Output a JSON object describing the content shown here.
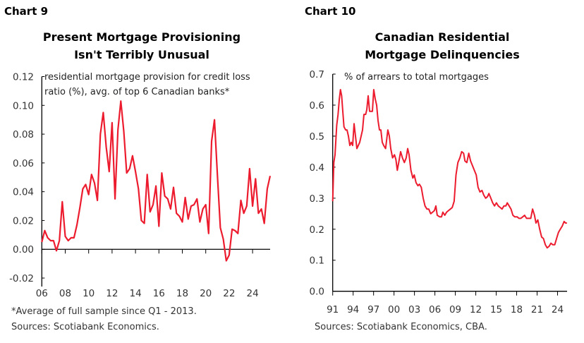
{
  "chart_data": [
    {
      "type": "line",
      "number_label": "Chart 9",
      "title": [
        "Present Mortgage Provisioning",
        "Isn't Terribly Unusual"
      ],
      "annotation": [
        "residential mortgage provision for credit loss",
        "ratio (%), avg. of top 6 Canadian banks*"
      ],
      "footnotes": [
        "*Average of full sample since Q1 - 2013.",
        "Sources: Scotiabank Economics."
      ],
      "ylim": [
        -0.02,
        0.12
      ],
      "yticks": [
        "-0.02",
        "0.00",
        "0.02",
        "0.04",
        "0.06",
        "0.08",
        "0.10",
        "0.12"
      ],
      "xlim": [
        2006,
        2025.5
      ],
      "xticks": [
        "06",
        "08",
        "10",
        "12",
        "14",
        "16",
        "18",
        "20",
        "22",
        "24"
      ],
      "grid": false,
      "color": "#ec1c2e",
      "x": [
        2006.0,
        2006.25,
        2006.5,
        2006.75,
        2007.0,
        2007.25,
        2007.5,
        2007.75,
        2008.0,
        2008.25,
        2008.5,
        2008.75,
        2009.0,
        2009.25,
        2009.5,
        2009.75,
        2010.0,
        2010.25,
        2010.5,
        2010.75,
        2011.0,
        2011.25,
        2011.5,
        2011.75,
        2012.0,
        2012.25,
        2012.5,
        2012.75,
        2013.0,
        2013.25,
        2013.5,
        2013.75,
        2014.0,
        2014.25,
        2014.5,
        2014.75,
        2015.0,
        2015.25,
        2015.5,
        2015.75,
        2016.0,
        2016.25,
        2016.5,
        2016.75,
        2017.0,
        2017.25,
        2017.5,
        2017.75,
        2018.0,
        2018.25,
        2018.5,
        2018.75,
        2019.0,
        2019.25,
        2019.5,
        2019.75,
        2020.0,
        2020.25,
        2020.5,
        2020.75,
        2021.0,
        2021.25,
        2021.5,
        2021.75,
        2022.0,
        2022.25,
        2022.5,
        2022.75,
        2023.0,
        2023.25,
        2023.5,
        2023.75,
        2024.0,
        2024.25,
        2024.5,
        2024.75,
        2025.0,
        2025.25,
        2025.5
      ],
      "values": [
        0.005,
        0.013,
        0.008,
        0.006,
        0.006,
        -0.001,
        0.006,
        0.033,
        0.009,
        0.006,
        0.008,
        0.008,
        0.017,
        0.029,
        0.042,
        0.045,
        0.038,
        0.052,
        0.046,
        0.034,
        0.08,
        0.095,
        0.071,
        0.054,
        0.088,
        0.035,
        0.083,
        0.103,
        0.082,
        0.053,
        0.056,
        0.065,
        0.054,
        0.042,
        0.02,
        0.018,
        0.052,
        0.026,
        0.031,
        0.044,
        0.016,
        0.053,
        0.037,
        0.035,
        0.028,
        0.043,
        0.025,
        0.023,
        0.019,
        0.036,
        0.021,
        0.03,
        0.031,
        0.035,
        0.019,
        0.028,
        0.031,
        0.011,
        0.075,
        0.09,
        0.051,
        0.015,
        0.007,
        -0.008,
        -0.004,
        0.014,
        0.013,
        0.011,
        0.034,
        0.025,
        0.03,
        0.056,
        0.03,
        0.049,
        0.025,
        0.028,
        0.018,
        0.042,
        0.051
      ]
    },
    {
      "type": "line",
      "number_label": "Chart 10",
      "title": [
        "Canadian Residential",
        "Mortgage Delinquencies"
      ],
      "annotation": [
        "% of arrears to total mortgages"
      ],
      "footnotes": [
        "Sources: Scotiabank Economics, CBA."
      ],
      "ylim": [
        0.0,
        0.7
      ],
      "yticks": [
        "0.0",
        "0.1",
        "0.2",
        "0.3",
        "0.4",
        "0.5",
        "0.6",
        "0.7"
      ],
      "xlim": [
        1991,
        2025.4
      ],
      "xticks": [
        "91",
        "94",
        "97",
        "00",
        "03",
        "06",
        "09",
        "12",
        "15",
        "18",
        "21",
        "24"
      ],
      "grid": false,
      "color": "#ec1c2e",
      "x": [
        1991.0,
        1991.17,
        1991.34,
        1991.59,
        1991.79,
        1991.97,
        1992.14,
        1992.31,
        1992.48,
        1992.66,
        1992.9,
        1993.1,
        1993.31,
        1993.52,
        1993.72,
        1993.93,
        1994.14,
        1994.34,
        1994.55,
        1994.76,
        1994.97,
        1995.17,
        1995.38,
        1995.59,
        1995.83,
        1996.0,
        1996.21,
        1996.41,
        1996.62,
        1996.83,
        1997.03,
        1997.24,
        1997.45,
        1997.66,
        1997.86,
        1998.07,
        1998.28,
        1998.48,
        1998.76,
        1999.1,
        1999.31,
        1999.52,
        1999.79,
        2000.07,
        2000.28,
        2000.48,
        2000.69,
        2000.97,
        2001.24,
        2001.52,
        2001.79,
        2002.0,
        2002.21,
        2002.48,
        2002.76,
        2002.97,
        2003.24,
        2003.52,
        2003.72,
        2004.0,
        2004.28,
        2004.55,
        2004.83,
        2005.1,
        2005.38,
        2005.66,
        2005.93,
        2006.14,
        2006.34,
        2006.69,
        2006.97,
        2007.17,
        2007.45,
        2007.72,
        2008.0,
        2008.28,
        2008.55,
        2008.83,
        2009.1,
        2009.38,
        2009.66,
        2009.93,
        2010.21,
        2010.41,
        2010.69,
        2010.97,
        2011.24,
        2011.52,
        2011.79,
        2012.07,
        2012.34,
        2012.62,
        2012.9,
        2013.17,
        2013.45,
        2013.72,
        2013.93,
        2014.21,
        2014.48,
        2014.76,
        2015.03,
        2015.31,
        2015.59,
        2015.86,
        2016.14,
        2016.41,
        2016.62,
        2016.9,
        2017.17,
        2017.45,
        2017.72,
        2018.07,
        2018.34,
        2018.62,
        2018.9,
        2019.17,
        2019.45,
        2019.79,
        2020.07,
        2020.34,
        2020.62,
        2020.83,
        2021.1,
        2021.38,
        2021.66,
        2021.93,
        2022.21,
        2022.48,
        2022.76,
        2023.03,
        2023.31,
        2023.59,
        2023.86,
        2024.14,
        2024.41,
        2024.69,
        2024.97,
        2025.17,
        2025.38
      ],
      "values": [
        0.29,
        0.415,
        0.44,
        0.535,
        0.57,
        0.62,
        0.65,
        0.63,
        0.58,
        0.53,
        0.52,
        0.52,
        0.5,
        0.47,
        0.48,
        0.47,
        0.54,
        0.5,
        0.46,
        0.47,
        0.48,
        0.5,
        0.52,
        0.57,
        0.57,
        0.585,
        0.63,
        0.58,
        0.58,
        0.58,
        0.65,
        0.62,
        0.6,
        0.55,
        0.52,
        0.52,
        0.48,
        0.47,
        0.46,
        0.52,
        0.5,
        0.46,
        0.43,
        0.44,
        0.425,
        0.39,
        0.415,
        0.45,
        0.43,
        0.415,
        0.43,
        0.46,
        0.44,
        0.39,
        0.365,
        0.375,
        0.35,
        0.34,
        0.345,
        0.335,
        0.3,
        0.275,
        0.265,
        0.265,
        0.25,
        0.255,
        0.26,
        0.275,
        0.245,
        0.24,
        0.24,
        0.255,
        0.245,
        0.255,
        0.26,
        0.265,
        0.27,
        0.29,
        0.375,
        0.415,
        0.43,
        0.45,
        0.445,
        0.42,
        0.415,
        0.445,
        0.42,
        0.405,
        0.39,
        0.375,
        0.335,
        0.32,
        0.325,
        0.31,
        0.3,
        0.305,
        0.315,
        0.3,
        0.285,
        0.275,
        0.285,
        0.275,
        0.27,
        0.265,
        0.275,
        0.275,
        0.285,
        0.275,
        0.265,
        0.245,
        0.24,
        0.24,
        0.235,
        0.235,
        0.24,
        0.245,
        0.235,
        0.235,
        0.235,
        0.265,
        0.245,
        0.22,
        0.23,
        0.2,
        0.175,
        0.17,
        0.15,
        0.14,
        0.145,
        0.155,
        0.15,
        0.15,
        0.17,
        0.19,
        0.2,
        0.21,
        0.225,
        0.22,
        0.22
      ]
    }
  ]
}
